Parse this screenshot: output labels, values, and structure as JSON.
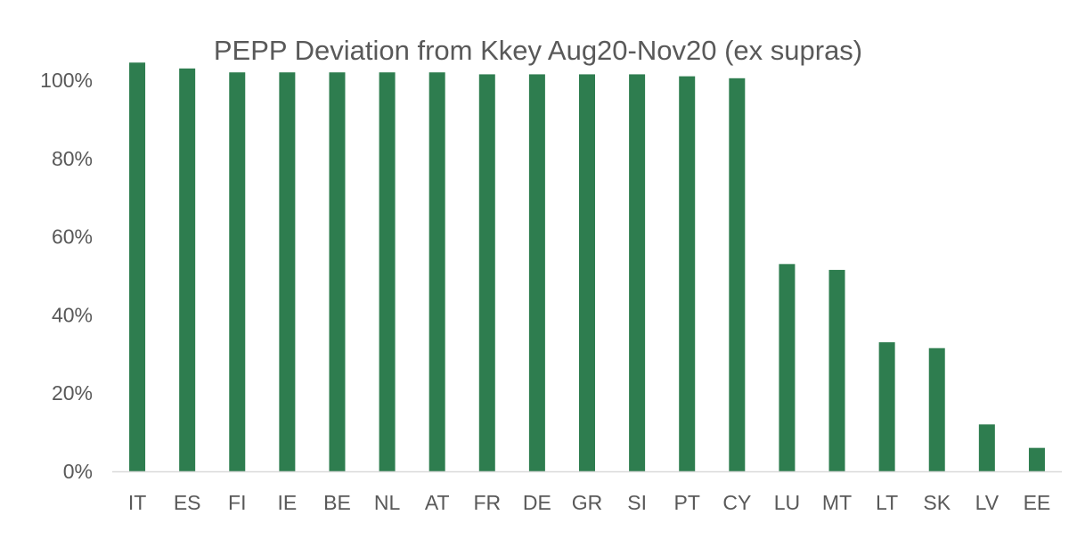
{
  "chart_data": {
    "type": "bar",
    "title": "PEPP Deviation from Kkey Aug20-Nov20  (ex supras)",
    "xlabel": "",
    "ylabel": "",
    "categories": [
      "IT",
      "ES",
      "FI",
      "IE",
      "BE",
      "NL",
      "AT",
      "FR",
      "DE",
      "GR",
      "SI",
      "PT",
      "CY",
      "LU",
      "MT",
      "LT",
      "SK",
      "LV",
      "EE"
    ],
    "values": [
      104.5,
      103,
      102,
      102,
      102,
      102,
      102,
      101.5,
      101.5,
      101.5,
      101.5,
      101,
      100.5,
      53,
      51.5,
      33,
      31.5,
      12,
      6
    ],
    "ylim": [
      0,
      100
    ],
    "yticks": [
      "0%",
      "20%",
      "40%",
      "60%",
      "80%",
      "100%"
    ],
    "ytick_values": [
      0,
      20,
      40,
      60,
      80,
      100
    ],
    "grid": false,
    "legend": "none",
    "bar_color": "#2e7d4f",
    "axis_color": "#d9d9d9",
    "text_color": "#595959"
  }
}
